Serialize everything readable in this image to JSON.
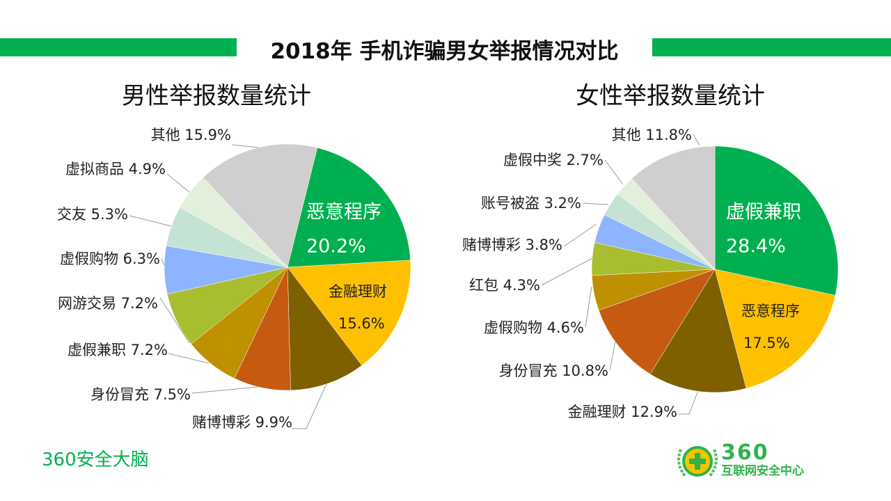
{
  "title": "2018年 手机诈骗男女举报情况对比",
  "brand": "360安全大脑",
  "logo": {
    "number": "360",
    "text": "互联网安全中心"
  },
  "chart_data": [
    {
      "type": "pie",
      "title": "男性举报数量统计",
      "start_angle_deg": 14,
      "labels": [
        "恶意程序",
        "金融理财",
        "赌博博彩",
        "身份冒充",
        "虚假兼职",
        "网游交易",
        "虚假购物",
        "交友",
        "虚拟商品",
        "其他"
      ],
      "values": [
        20.2,
        15.6,
        9.9,
        7.5,
        7.2,
        7.2,
        6.3,
        5.3,
        4.9,
        15.9
      ],
      "display": [
        "20.2%",
        "15.6%",
        "9.9%",
        "7.5%",
        "7.2%",
        "7.2%",
        "6.3%",
        "5.3%",
        "4.9%",
        "15.9%"
      ],
      "colors": [
        "#00B050",
        "#FFC000",
        "#7F6000",
        "#C55A11",
        "#BF9000",
        "#A9BD30",
        "#8FB4FF",
        "#C5E3D4",
        "#E2EFDA",
        "#D0CECE"
      ]
    },
    {
      "type": "pie",
      "title": "女性举报数量统计",
      "start_angle_deg": 0,
      "labels": [
        "虚假兼职",
        "恶意程序",
        "金融理财",
        "身份冒充",
        "虚假购物",
        "红包",
        "赌博博彩",
        "账号被盗",
        "虚假中奖",
        "其他"
      ],
      "values": [
        28.4,
        17.5,
        12.9,
        10.8,
        4.6,
        4.3,
        3.8,
        3.2,
        2.7,
        11.8
      ],
      "display": [
        "28.4%",
        "17.5%",
        "12.9%",
        "10.8%",
        "4.6%",
        "4.3%",
        "3.8%",
        "3.2%",
        "2.7%",
        "11.8%"
      ],
      "colors": [
        "#00B050",
        "#FFC000",
        "#7F6000",
        "#C55A11",
        "#BF9000",
        "#A9BD30",
        "#8FB4FF",
        "#C5E3D4",
        "#E2EFDA",
        "#D0CECE"
      ]
    }
  ]
}
